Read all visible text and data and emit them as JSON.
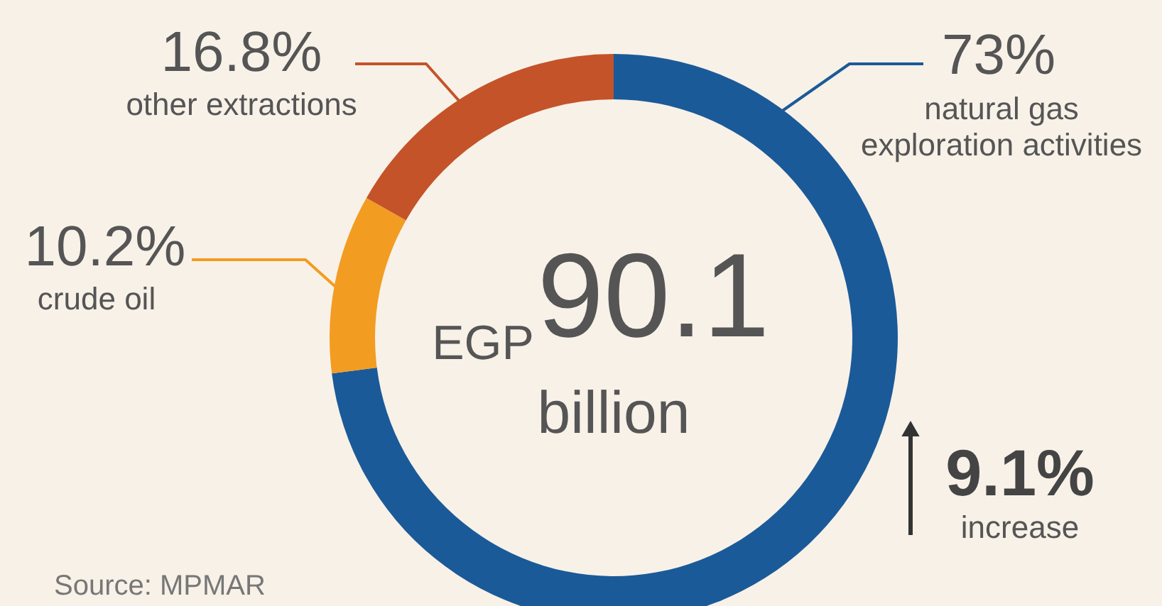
{
  "chart_data": {
    "type": "donut",
    "categories": [
      "natural gas\nexploration activities",
      "crude oil",
      "other extractions"
    ],
    "values": [
      73,
      10.2,
      16.8
    ],
    "colors": [
      "#1b5a98",
      "#f39c22",
      "#c4532a"
    ],
    "value_labels": [
      "73%",
      "10.2%",
      "16.8%"
    ],
    "annotations": [
      "EGP",
      "90.1",
      "billion",
      "9.1%",
      "increase",
      "Source: MPMAR"
    ]
  }
}
